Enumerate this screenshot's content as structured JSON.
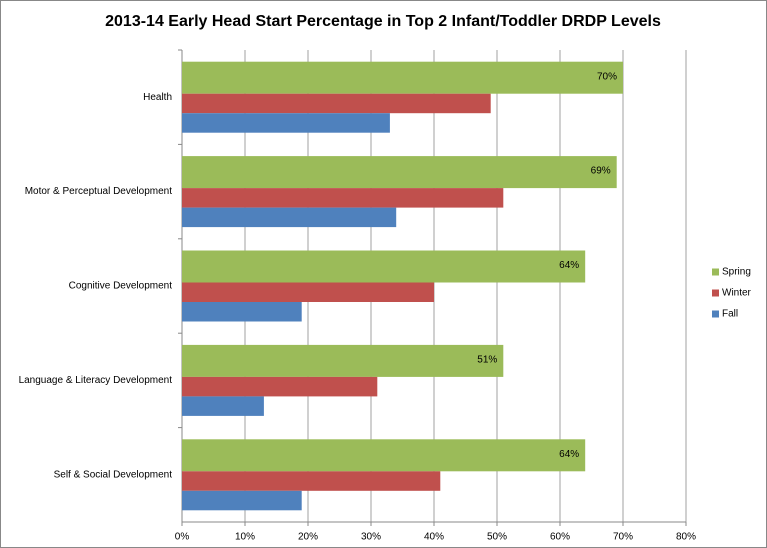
{
  "chart_data": {
    "type": "bar",
    "orientation": "horizontal",
    "title": "2013-14 Early Head Start Percentage in Top 2 Infant/Toddler DRDP Levels",
    "categories": [
      "Health",
      "Motor & Perceptual Development",
      "Cognitive Development",
      "Language & Literacy Development",
      "Self & Social Development"
    ],
    "series": [
      {
        "name": "Spring",
        "color": "#9bbb59",
        "values": [
          70,
          69,
          64,
          51,
          64
        ],
        "value_labels": [
          "70%",
          "69%",
          "64%",
          "51%",
          "64%"
        ]
      },
      {
        "name": "Winter",
        "color": "#c0504d",
        "values": [
          49,
          51,
          40,
          31,
          41
        ]
      },
      {
        "name": "Fall",
        "color": "#4f81bd",
        "values": [
          33,
          34,
          19,
          13,
          19
        ]
      }
    ],
    "xlim": [
      0,
      80
    ],
    "xticks": [
      {
        "value": 0,
        "label": "0%"
      },
      {
        "value": 10,
        "label": "10%"
      },
      {
        "value": 20,
        "label": "20%"
      },
      {
        "value": 30,
        "label": "30%"
      },
      {
        "value": 40,
        "label": "40%"
      },
      {
        "value": 50,
        "label": "50%"
      },
      {
        "value": 60,
        "label": "60%"
      },
      {
        "value": 70,
        "label": "70%"
      },
      {
        "value": 80,
        "label": "80%"
      }
    ],
    "grid": true,
    "legend": "right"
  }
}
